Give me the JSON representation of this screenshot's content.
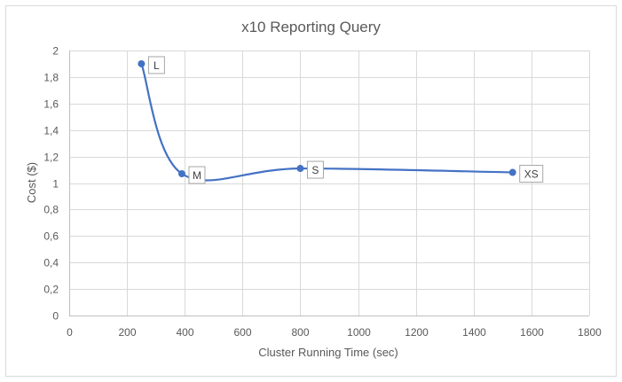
{
  "chart_data": {
    "type": "scatter",
    "title": "x10 Reporting Query",
    "xlabel": "Cluster Running Time (sec)",
    "ylabel": "Cost ($)",
    "xlim": [
      0,
      1800
    ],
    "ylim": [
      0,
      2
    ],
    "x_ticks": [
      0,
      200,
      400,
      600,
      800,
      1000,
      1200,
      1400,
      1600,
      1800
    ],
    "x_tick_labels": [
      "0",
      "200",
      "400",
      "600",
      "800",
      "1000",
      "1200",
      "1400",
      "1600",
      "1800"
    ],
    "y_ticks": [
      0,
      0.2,
      0.4,
      0.6,
      0.8,
      1,
      1.2,
      1.4,
      1.6,
      1.8,
      2
    ],
    "y_tick_labels": [
      "0",
      "0,2",
      "0,4",
      "0,6",
      "0,8",
      "1",
      "1,2",
      "1,4",
      "1,6",
      "1,8",
      "2"
    ],
    "grid": true,
    "smoothed_line": true,
    "series_color": "#4472c4",
    "points": [
      {
        "x": 250,
        "y": 1.9,
        "label": "L"
      },
      {
        "x": 390,
        "y": 1.07,
        "label": "M"
      },
      {
        "x": 800,
        "y": 1.11,
        "label": "S"
      },
      {
        "x": 1535,
        "y": 1.08,
        "label": "XS"
      }
    ]
  }
}
